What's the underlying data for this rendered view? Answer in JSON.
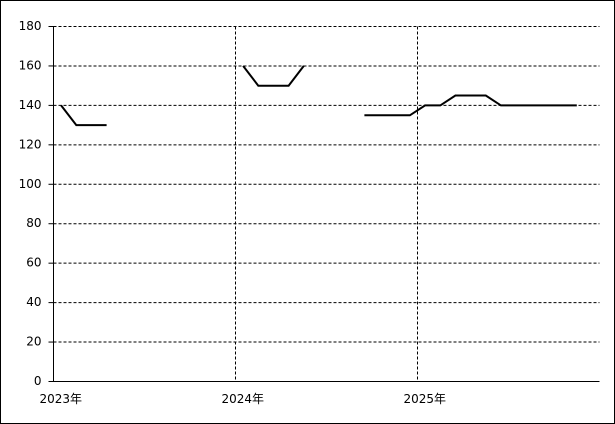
{
  "chart_data": {
    "type": "line",
    "categories": [
      "2023年",
      null,
      null,
      null,
      null,
      null,
      null,
      null,
      null,
      null,
      null,
      null,
      "2024年",
      null,
      null,
      null,
      null,
      null,
      null,
      null,
      null,
      null,
      null,
      null,
      "2025年",
      null,
      null,
      null,
      null,
      null,
      null,
      null,
      null,
      null,
      null,
      null
    ],
    "series": [
      {
        "color": "#000000",
        "values": [
          140,
          130,
          130,
          130,
          null,
          null,
          null,
          null,
          null,
          null,
          null,
          null,
          160,
          150,
          150,
          150,
          160,
          null,
          null,
          null,
          135,
          135,
          135,
          135,
          140,
          140,
          145,
          145,
          145,
          140,
          140,
          140,
          140,
          140,
          140,
          null
        ]
      }
    ],
    "ylim": [
      0,
      180
    ],
    "yticks": [
      0,
      20,
      40,
      60,
      80,
      100,
      120,
      140,
      160,
      180
    ],
    "grid": true
  }
}
